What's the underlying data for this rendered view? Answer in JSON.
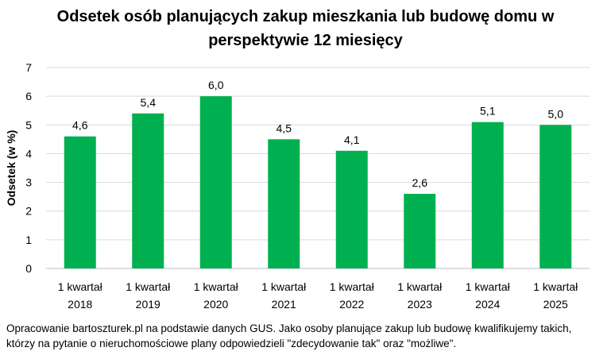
{
  "title_lines": [
    "Odsetek osób planujących zakup mieszkania lub budowę domu w",
    "perspektywie 12 miesięcy"
  ],
  "footnote_lines": [
    "Opracowanie bartoszturek.pl na podstawie danych GUS. Jako osoby planujące zakup lub budowę kwalifikujemy takich,",
    "którzy na pytanie o nieruchomościowe plany odpowiedzieli \"zdecydowanie tak\" oraz \"możliwe\"."
  ],
  "chart_data": {
    "type": "bar",
    "title": "Odsetek osób planujących zakup mieszkania lub budowę domu w perspektywie 12 miesięcy",
    "ylabel": "Odsetek (w %)",
    "xlabel": "",
    "ylim": [
      0,
      7
    ],
    "yticks": [
      0,
      1,
      2,
      3,
      4,
      5,
      6,
      7
    ],
    "grid": true,
    "legend": "none",
    "color": "#00b050",
    "categories": [
      [
        "1 kwartał",
        "2018"
      ],
      [
        "1 kwartał",
        "2019"
      ],
      [
        "1 kwartał",
        "2020"
      ],
      [
        "1 kwartał",
        "2021"
      ],
      [
        "1 kwartał",
        "2022"
      ],
      [
        "1 kwartał",
        "2023"
      ],
      [
        "1 kwartał",
        "2024"
      ],
      [
        "1 kwartał",
        "2025"
      ]
    ],
    "values": [
      4.6,
      5.4,
      6.0,
      4.5,
      4.1,
      2.6,
      5.1,
      5.0
    ],
    "data_labels": [
      "4,6",
      "5,4",
      "6,0",
      "4,5",
      "4,1",
      "2,6",
      "5,1",
      "5,0"
    ]
  }
}
